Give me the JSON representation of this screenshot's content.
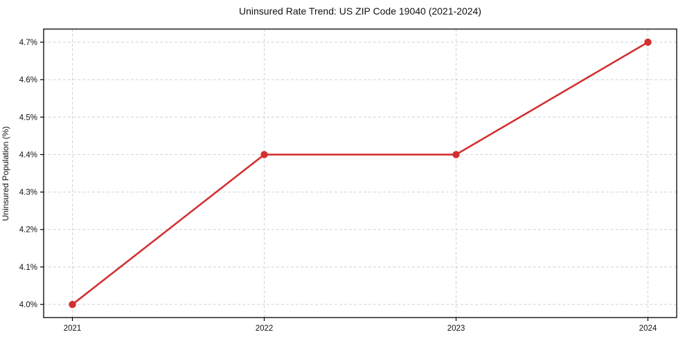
{
  "chart_data": {
    "type": "line",
    "title": "Uninsured Rate Trend: US ZIP Code 19040 (2021-2024)",
    "xlabel": "",
    "ylabel": "Uninsured Population (%)",
    "x": [
      2021,
      2022,
      2023,
      2024
    ],
    "values": [
      4.0,
      4.4,
      4.4,
      4.7
    ],
    "xtick_labels": [
      "2021",
      "2022",
      "2023",
      "2024"
    ],
    "ytick_values": [
      4.0,
      4.1,
      4.2,
      4.3,
      4.4,
      4.5,
      4.6,
      4.7
    ],
    "ytick_labels": [
      "4.0%",
      "4.1%",
      "4.2%",
      "4.3%",
      "4.4%",
      "4.5%",
      "4.6%",
      "4.7%"
    ],
    "xlim": [
      2020.85,
      2024.15
    ],
    "ylim": [
      3.965,
      4.735
    ],
    "grid": true,
    "legend": "none",
    "line_color": "#d32f2f",
    "marker_color": "#d32f2f",
    "grid_color": "#d2d2d2",
    "spine_color": "#000000",
    "tick_label_color": "#111111"
  }
}
